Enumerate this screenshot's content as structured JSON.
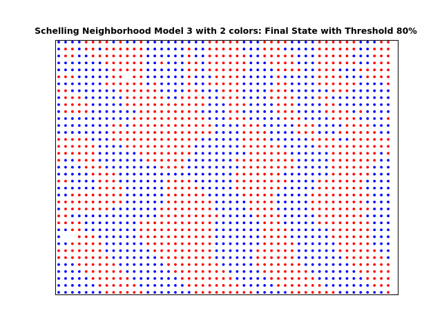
{
  "chart_data": {
    "type": "scatter",
    "title": "Schelling Neighborhood Model 3 with 2 colors: Final State with Threshold 80%",
    "xlabel": "",
    "ylabel": "",
    "grid": false,
    "legend": "none",
    "axis_ticks": false,
    "xlim": [
      0,
      49
    ],
    "ylim": [
      0,
      36
    ],
    "series": [
      {
        "color": "#0000ff"
      },
      {
        "color": "#ff0000"
      }
    ],
    "encoding": {
      "symbols": {
        "B": 0,
        "R": 1,
        ".": null
      }
    },
    "grid_rows": [
      "BBBBRRRRBRBBRBBBBBBBBBRRRRRBBBRRRRBBBBRRRRRRBBBRR",
      "BRRBRRBRRRRRRBBBBBBRBBRRRRRBBBRRRBBBBBRRRRRRBBRRR",
      "BRRBBRRRRRRRRBBBBBBRBBRRRRRRBBRRRRRBBBRRRRRBBBRRR",
      "BBBBBBBRRRRRRBBRBBBRRBRRRRRRBBBRRRRBBBRRRRRRBBRRR",
      "BBBBBBBBRRRRRBBBBBBRRBRRRRRRBBBBRRRRBBRRRBBBRRRRR",
      "RRRBBBBBRR.RRBBBBBBRBBBRRRRBBBBBRBBBBBRRRRBBBRRRR",
      "BBBBBBBRRRRRRBRBBBBRBBRRRRRBBBBBRRBBBBRRRRRRBBBBR",
      "RRBBBBBBBRRRRRRBBBBRRBBBRRRBBBBRRRBBBBBBRRRBBBBBB",
      "BRRRBBBBBBRRRRRRBBRRRRBBRRRBBBBRRRRBBBRRBBBBBBBBB",
      "BRRRRBBBBBRRRRRRRRRRRRBBBRRRBBBBRRRBBBBRRBBBBBBBB",
      "BRRRRBBBBBBBRRRRRRRRRBBBBRRBBBBBRRRBBBBRRRRBRBBBB",
      "BBBBBBBBBBBRRRRRRRRRRRBBBRRRBBBBBRRRBBBBRRRRBBBBR",
      "BBBBBBBBRRBRRRRRRRRRRRRBBBBRRRBBBBBRRRBBBBRRRRBBB",
      "BBBBBBBBRRRRRRRRRRRRRRRBBBBRRRRBBBBRRRBBBRRRRRRBB",
      "RRRRRBBBRRRRRRRRRRRRRBBBBBBRRRRBBBBBBRRRRBBRRRRRR",
      "RRRRRRBBBBRRRRRRRRRRBBBBBBBRRRRRRBBBBBRRRRRRRRRRR",
      "RRRRRRBBBBBBRRRRRRRRBBBBBBBBRRRRRRBBBBBBRRRRRRRBR",
      "RBBRRRBBBBBBBRRRRRRBBBBBBBRRRRRRRRRBBBBBRRRRRRRBB",
      "BBBBRRRBBBBBBBBRRRRBBBBBBBBRRRRRRRRBBBBBRRRRRRBBB",
      "BBBBBRRRRBBBBBBBBBBBBBBBBBRRRRRRRBBBBBBBRRRRRRBBB",
      "RRBBBBRRRBBBBBBBRRRRBBBBBBRRRRRRRRBBBBRRRRRRRBBBB",
      "BBBBBBRRRRBBBBBBRRRRRBBBBBRRRRRRRBBBBBRRRRRRRBBBB",
      "BBRRRRRRRRBBBBBBRRRRRRBBBBBRRRRRBBBBBRRRRRRRRRBBB",
      "RRRRRRRRRRBBBBBBRRRRRRRBBBBBRRRRBBBBBRRRRRRRRBBBB",
      "BRRRRRRRBBBBBBBRRRRRRRRBBBBBRRRRBBBBBRRRRRRRRRBBB",
      "RRBBBBBBBBBBBBBRRRRRRRRRBBBBBRRRRBBBBBRRRRRRRBBBB",
      "RRRRBBBBBBBBRRRRRRRRRRRBBBBBBBRRRBBBBBRRRRRRRRBBB",
      "BBRRBBBBBBBBRRRRRRRRRRRBBBBBBBRRRRBBBBBBRRRRRRBBB",
      "B..RRRBBBBBBRRRRRRRRRRRBBBBBBBRRRRBBBBBBRRRRRRBBB",
      "BBRRRRRBBBBBBRRRRRRRRRRBBBBBBBRRRRRBBBBBBRRRRRBBB",
      "RRRRRRRBBBBBBBRRRRRRRRRBBBBBBRRRRRRBBBBBBRRRRRRBB",
      "RRRRRRRRBBBBBBBRRRRRRRRBBBBBBRRRRRRBBBBBBBRRRRRRB",
      "BBBRRRRRRBBBBBBBRRRRRRRRBBBBBRRRRRRRBBBBBBBRRRRRR",
      "BBBBRRRRRRBBBBBBBRRRRRRRRBBBBBRRRRRRRBBBBBBBRRRRR",
      "BBBBBRRRRRRBBBBBBBRRRRRRRRBBBBBRRRRRRRBBBBBBBRRRR",
      "BBBBBBRRRRRRBBBBBBBRRRRRRRRBBBBBRRRRRRRBBBBBBBRRR",
      "BBBBBBBRRRRRRBBBBBBBRRRRRRRRRBBBBBRRRRRRRBBBBBBBR"
    ]
  }
}
